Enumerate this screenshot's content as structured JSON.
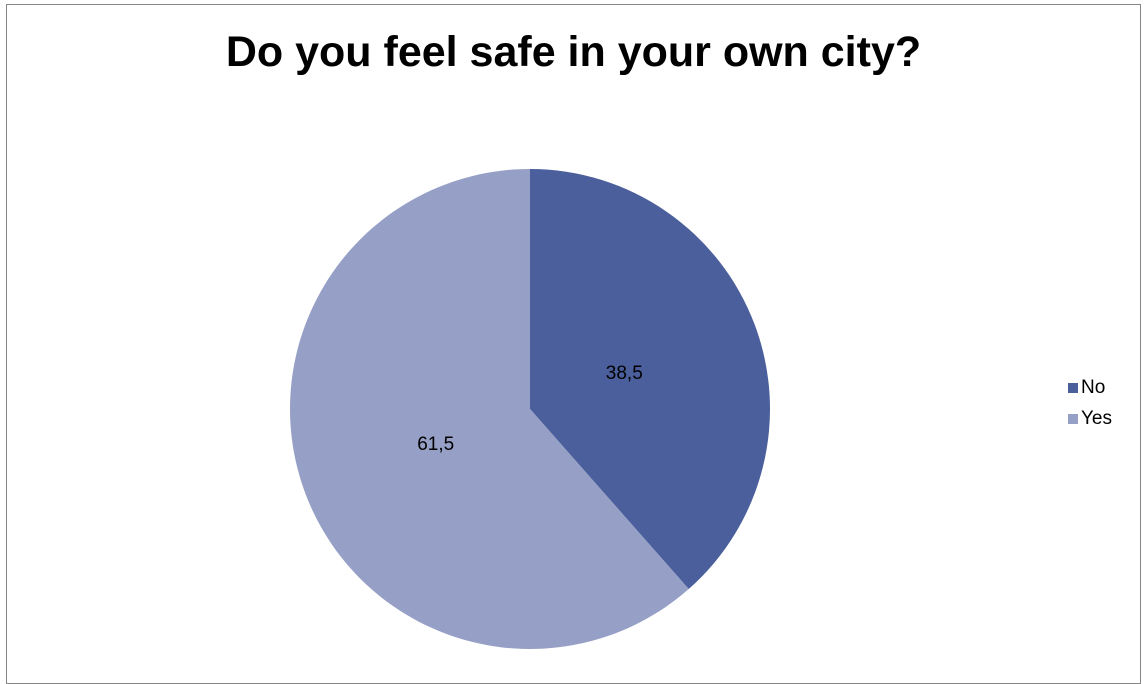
{
  "chart_data": {
    "type": "pie",
    "title": "Do you feel safe in your own city?",
    "categories": [
      "No",
      "Yes"
    ],
    "values": [
      38.5,
      61.5
    ],
    "data_labels": [
      "38,5",
      "61,5"
    ],
    "colors": [
      "#4a5f9b",
      "#96a0c6"
    ],
    "legend": {
      "position": "right",
      "entries": [
        "No",
        "Yes"
      ]
    },
    "start_angle": "12 o'clock",
    "direction": "clockwise"
  }
}
